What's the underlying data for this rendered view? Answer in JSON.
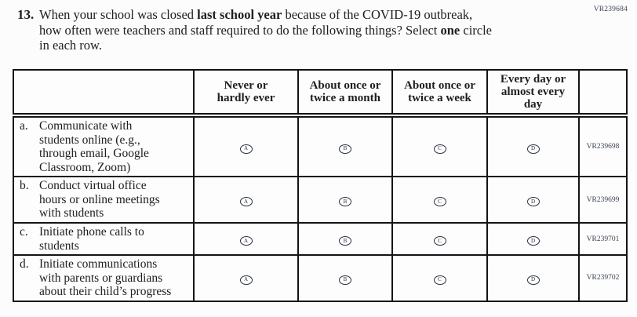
{
  "page_code": "VR239684",
  "question": {
    "number": "13.",
    "line1_pre": "When your school was closed ",
    "line1_bold": "last school year",
    "line1_post": " because of the COVID-19 outbreak,",
    "line2_pre": "how often were teachers and staff required to do the following things? Select ",
    "line2_bold": "one",
    "line2_post": " circle",
    "line3": "in each row."
  },
  "table": {
    "column_headers": [
      {
        "lines": [
          "Never or",
          "hardly ever"
        ]
      },
      {
        "lines": [
          "About once or",
          "twice a month"
        ]
      },
      {
        "lines": [
          "About once or",
          "twice a week"
        ]
      },
      {
        "lines": [
          "Every day or",
          "almost every",
          "day"
        ]
      }
    ],
    "rows": [
      {
        "letter": "a.",
        "label": "Communicate with students online (e.g., through email, Google Classroom, Zoom)",
        "label_lines": [
          "Communicate with",
          "students online (e.g.,",
          "through email, Google",
          "Classroom, Zoom)"
        ],
        "options": [
          "A",
          "B",
          "C",
          "D"
        ],
        "code": "VR239698"
      },
      {
        "letter": "b.",
        "label": "Conduct virtual office hours or online meetings with students",
        "label_lines": [
          "Conduct virtual office",
          "hours or online meetings",
          "with students"
        ],
        "options": [
          "A",
          "B",
          "C",
          "D"
        ],
        "code": "VR239699"
      },
      {
        "letter": "c.",
        "label": "Initiate phone calls to students",
        "label_lines": [
          "Initiate phone calls to",
          "students"
        ],
        "options": [
          "A",
          "B",
          "C",
          "D"
        ],
        "code": "VR239701"
      },
      {
        "letter": "d.",
        "label": "Initiate communications with parents or guardians about their child’s progress",
        "label_lines": [
          "Initiate communications",
          "with parents or guardians",
          "about their child’s progress"
        ],
        "options": [
          "A",
          "B",
          "C",
          "D"
        ],
        "code": "VR239702"
      }
    ]
  },
  "colors": {
    "text": "#1d1d22",
    "border": "#141414",
    "code_text": "#3a4254",
    "background": "#fcfcfc"
  }
}
